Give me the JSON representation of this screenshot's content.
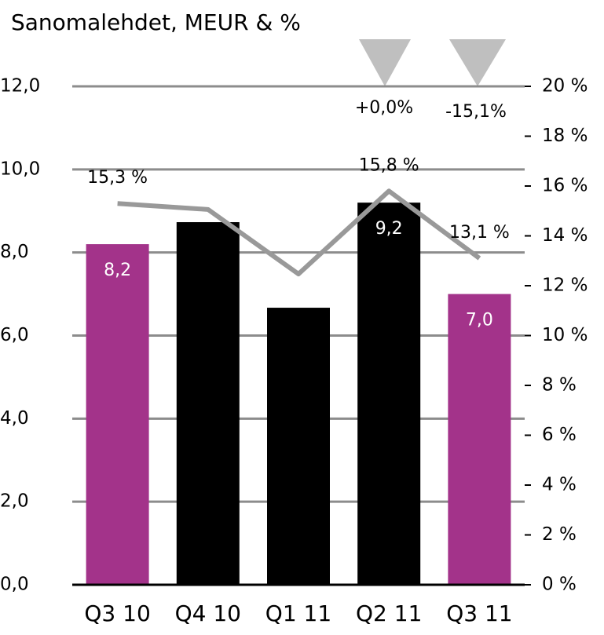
{
  "chart_data": {
    "type": "bar",
    "title": "Sanomalehdet, MEUR & %",
    "categories": [
      "Q3 10",
      "Q4 10",
      "Q1 11",
      "Q2 11",
      "Q3 11"
    ],
    "series": [
      {
        "type": "bar",
        "colors": [
          "#a3338a",
          "#000000",
          "#000000",
          "#000000",
          "#a3338a"
        ],
        "values": [
          8.2,
          8.73,
          6.67,
          9.2,
          7.0
        ],
        "value_labels": [
          "8,2",
          null,
          null,
          "9,2",
          "7,0"
        ]
      },
      {
        "type": "line",
        "axis": "y2",
        "color": "#999999",
        "values": [
          15.3,
          15.06,
          12.47,
          15.8,
          13.1
        ],
        "value_labels": [
          "15,3 %",
          null,
          null,
          "15,8 %",
          "13,1 %"
        ]
      }
    ],
    "ylim": [
      0,
      12
    ],
    "yticks": [
      {
        "value": 0,
        "label": "0,0"
      },
      {
        "value": 2,
        "label": "2,0"
      },
      {
        "value": 4,
        "label": "4,0"
      },
      {
        "value": 6,
        "label": "6,0"
      },
      {
        "value": 8,
        "label": "8,0"
      },
      {
        "value": 10,
        "label": "10,0"
      },
      {
        "value": 12,
        "label": "12,0"
      }
    ],
    "y2lim": [
      0,
      20
    ],
    "y2ticks": [
      {
        "value": 0,
        "label": "0 %"
      },
      {
        "value": 2,
        "label": "2 %"
      },
      {
        "value": 4,
        "label": "4 %"
      },
      {
        "value": 6,
        "label": "6 %"
      },
      {
        "value": 8,
        "label": "8 %"
      },
      {
        "value": 10,
        "label": "10 %"
      },
      {
        "value": 12,
        "label": "12 %"
      },
      {
        "value": 14,
        "label": "14 %"
      },
      {
        "value": 16,
        "label": "16 %"
      },
      {
        "value": 18,
        "label": "18 %"
      },
      {
        "value": 20,
        "label": "20 %"
      }
    ],
    "grid": true,
    "annotations": [
      "+0,0%",
      "-15,1%"
    ]
  }
}
